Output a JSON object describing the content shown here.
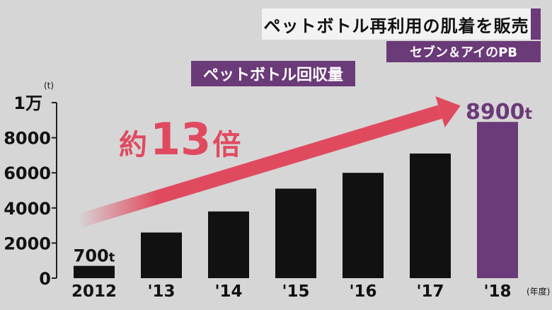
{
  "headline": {
    "text": "ペットボトル再利用の肌着を販売"
  },
  "sub_banner": {
    "text": "セブン＆アイのPB"
  },
  "chart_data": {
    "type": "bar",
    "title": "ペットボトル回収量",
    "unit_label": "(t)",
    "categories": [
      "2012",
      "'13",
      "'14",
      "'15",
      "'16",
      "'17",
      "'18"
    ],
    "values": [
      700,
      2600,
      3800,
      5100,
      6000,
      7100,
      8900
    ],
    "x_suffix": "(年度)",
    "ylim": [
      0,
      10000
    ],
    "yticks": [
      {
        "value": 0,
        "label": "0"
      },
      {
        "value": 2000,
        "label": "2000"
      },
      {
        "value": 4000,
        "label": "4000"
      },
      {
        "value": 6000,
        "label": "6000"
      },
      {
        "value": 8000,
        "label": "8000"
      },
      {
        "value": 10000,
        "label": "1万"
      }
    ],
    "data_labels": [
      {
        "index": 0,
        "value": "700",
        "unit": "t"
      },
      {
        "index": 6,
        "value": "8900",
        "unit": "t"
      }
    ],
    "annotation": {
      "prefix": "約",
      "number": "13",
      "suffix": "倍"
    },
    "bar_color": "#111111",
    "highlight_index": 6,
    "highlight_color": "#6b3a78",
    "arrow_color": "#e04a5f"
  }
}
